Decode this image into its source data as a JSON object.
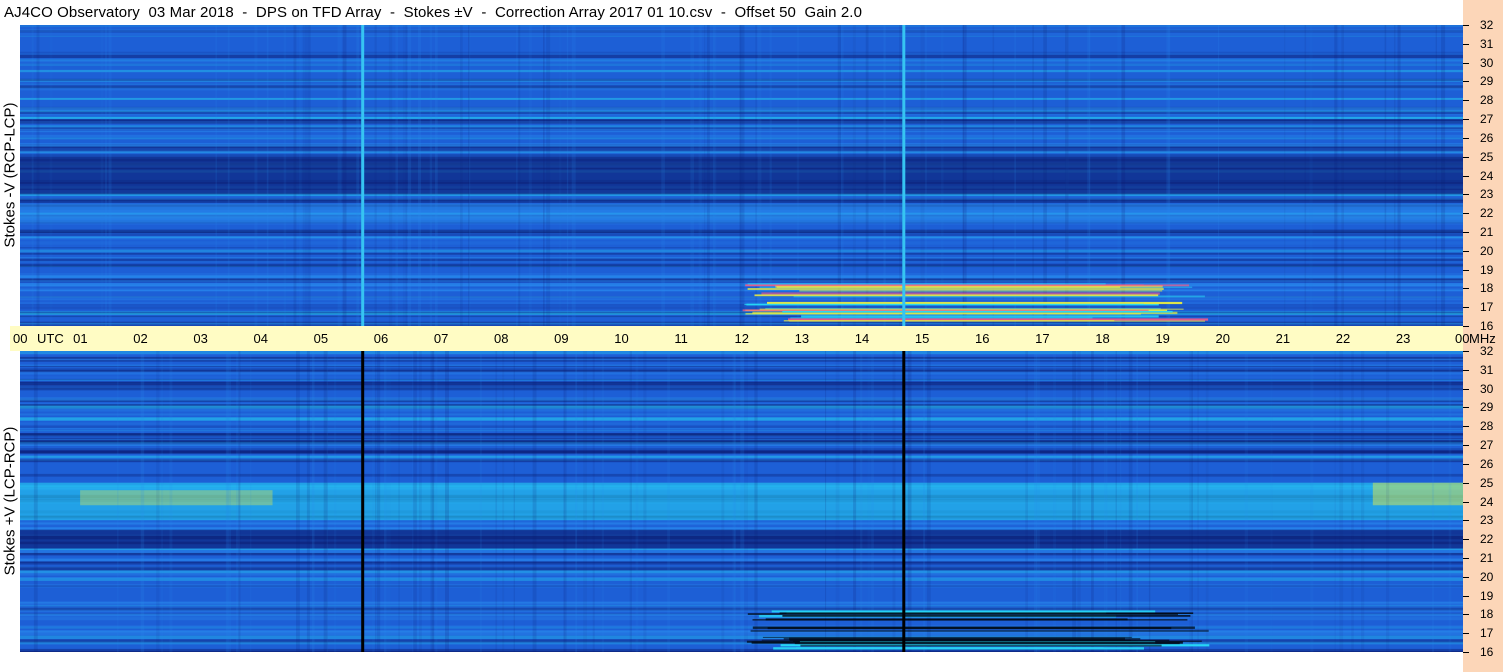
{
  "title": "AJ4CO Observatory  03 Mar 2018  -  DPS on TFD Array  -  Stokes ±V  -  Correction Array 2017 01 10.csv  -  Offset 50  Gain 2.0",
  "chart_data": [
    {
      "type": "heatmap",
      "name": "Stokes -V (RCP-LCP)",
      "xlabel": "UTC",
      "ylabel": "Stokes -V (RCP-LCP)",
      "yunit": "MHz",
      "x_ticks": [
        "00",
        "01",
        "02",
        "03",
        "04",
        "05",
        "06",
        "07",
        "08",
        "09",
        "10",
        "11",
        "12",
        "13",
        "14",
        "15",
        "16",
        "17",
        "18",
        "19",
        "20",
        "21",
        "22",
        "23",
        "00"
      ],
      "y_ticks": [
        32,
        31,
        30,
        29,
        28,
        27,
        26,
        25,
        24,
        23,
        22,
        21,
        20,
        19,
        18,
        17,
        16
      ],
      "xlim": [
        0,
        24
      ],
      "ylim": [
        16,
        32
      ],
      "colormap": [
        "#0a1a6e",
        "#1d5fd6",
        "#2a8ef0",
        "#27d7f5",
        "#f2f23a"
      ],
      "features": {
        "dark_band_mhz": [
          23,
          25
        ],
        "bright_band_mhz": [
          21.5,
          22.5
        ],
        "vertical_lines_utc": [
          5.7,
          14.7
        ],
        "vertical_line_color": "#36c4f2",
        "burst_region_utc": [
          12,
          19.8
        ],
        "burst_region_mhz": [
          16.2,
          18.3
        ]
      }
    },
    {
      "type": "heatmap",
      "name": "Stokes +V (LCP-RCP)",
      "xlabel": "UTC",
      "ylabel": "Stokes +V (LCP-RCP)",
      "yunit": "MHz",
      "x_ticks": [
        "00",
        "01",
        "02",
        "03",
        "04",
        "05",
        "06",
        "07",
        "08",
        "09",
        "10",
        "11",
        "12",
        "13",
        "14",
        "15",
        "16",
        "17",
        "18",
        "19",
        "20",
        "21",
        "22",
        "23",
        "00"
      ],
      "y_ticks": [
        32,
        31,
        30,
        29,
        28,
        27,
        26,
        25,
        24,
        23,
        22,
        21,
        20,
        19,
        18,
        17,
        16
      ],
      "xlim": [
        0,
        24
      ],
      "ylim": [
        16,
        32
      ],
      "colormap": [
        "#0a1a6e",
        "#1d5fd6",
        "#2a8ef0",
        "#27d7f5",
        "#f2f23a"
      ],
      "features": {
        "dark_band_mhz": [
          21.5,
          22.5
        ],
        "bright_band_mhz": [
          23,
          25
        ],
        "vertical_lines_utc": [
          5.7,
          14.7
        ],
        "vertical_line_color": "#000000",
        "burst_region_utc": [
          12,
          19.8
        ],
        "burst_region_mhz": [
          16.2,
          18.3
        ]
      }
    }
  ],
  "axis": {
    "utc_label": "UTC",
    "mhz_label": "MHz"
  }
}
